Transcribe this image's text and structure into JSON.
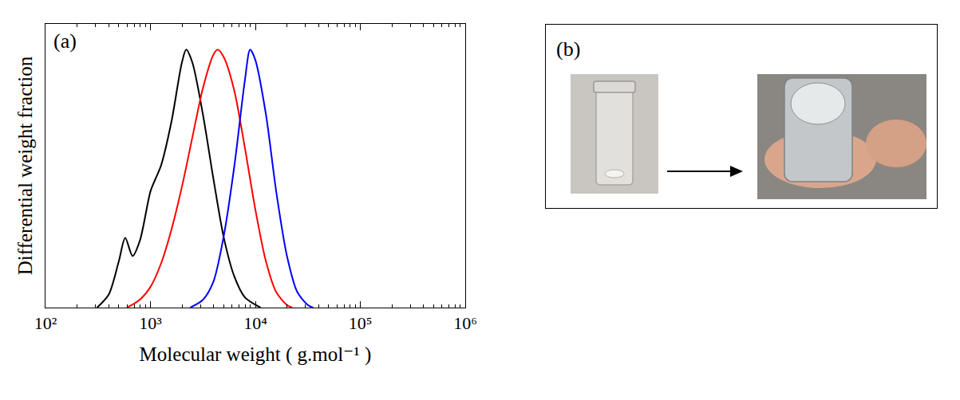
{
  "chart_data": {
    "type": "line",
    "x_label": "Molecular weight ( g.mol⁻¹ )",
    "y_label": "Differential weight fraction",
    "annotations": [
      "(a)"
    ],
    "log": "x",
    "grid": false,
    "tick_labels": "x",
    "xlim": [
      100,
      1000000
    ],
    "xticks": [
      {
        "value": 100,
        "label": "10²"
      },
      {
        "value": 1000,
        "label": "10³"
      },
      {
        "value": 10000,
        "label": "10⁴"
      },
      {
        "value": 100000,
        "label": "10⁵"
      },
      {
        "value": 1000000,
        "label": "10⁶"
      }
    ],
    "ylim": [
      0,
      1.1
    ],
    "series": [
      {
        "color": "#000000",
        "line_style": "solid",
        "x": [
          310,
          400,
          500,
          575,
          676,
          794,
          1000,
          1120,
          1260,
          1585,
          1995,
          2190,
          2510,
          3160,
          3980,
          5010,
          6310,
          7940,
          11200
        ],
        "values": [
          0,
          0.05,
          0.18,
          0.27,
          0.2,
          0.26,
          0.45,
          0.5,
          0.55,
          0.72,
          0.95,
          1.0,
          0.95,
          0.75,
          0.5,
          0.27,
          0.12,
          0.04,
          0
        ]
      },
      {
        "color": "#ff0000",
        "line_style": "solid",
        "x": [
          600,
          790,
          1000,
          1260,
          1580,
          2000,
          2510,
          3160,
          3980,
          4370,
          5010,
          6310,
          7940,
          10000,
          12600,
          15800,
          20000,
          22400
        ],
        "values": [
          0,
          0.03,
          0.08,
          0.17,
          0.3,
          0.47,
          0.66,
          0.85,
          0.98,
          1.0,
          0.97,
          0.84,
          0.62,
          0.38,
          0.18,
          0.06,
          0.01,
          0
        ]
      },
      {
        "color": "#0000ff",
        "line_style": "solid",
        "x": [
          2400,
          3160,
          3980,
          5010,
          6310,
          7940,
          8910,
          10000,
          12600,
          15800,
          20000,
          25100,
          31600,
          35500
        ],
        "values": [
          0,
          0.03,
          0.1,
          0.28,
          0.55,
          0.88,
          1.0,
          0.96,
          0.75,
          0.45,
          0.2,
          0.06,
          0.01,
          0
        ]
      }
    ]
  },
  "panel_b": {
    "label": "(b)"
  }
}
